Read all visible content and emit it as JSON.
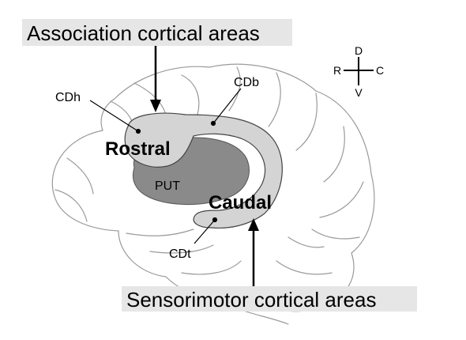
{
  "labels": {
    "association": "Association cortical areas",
    "sensorimotor": "Sensorimotor cortical areas",
    "rostral": "Rostral",
    "caudal": "Caudal",
    "put": "PUT",
    "cdh": "CDh",
    "cdb": "CDb",
    "cdt": "CDt"
  },
  "compass": {
    "dorsal": "D",
    "ventral": "V",
    "rostral": "R",
    "caudal": "C"
  },
  "colors": {
    "label_background": "#e6e6e6",
    "caudate": "#d4d4d4",
    "putamen": "#8a8a8a",
    "brain_outline": "#9a9a9a",
    "ink": "#000000"
  }
}
